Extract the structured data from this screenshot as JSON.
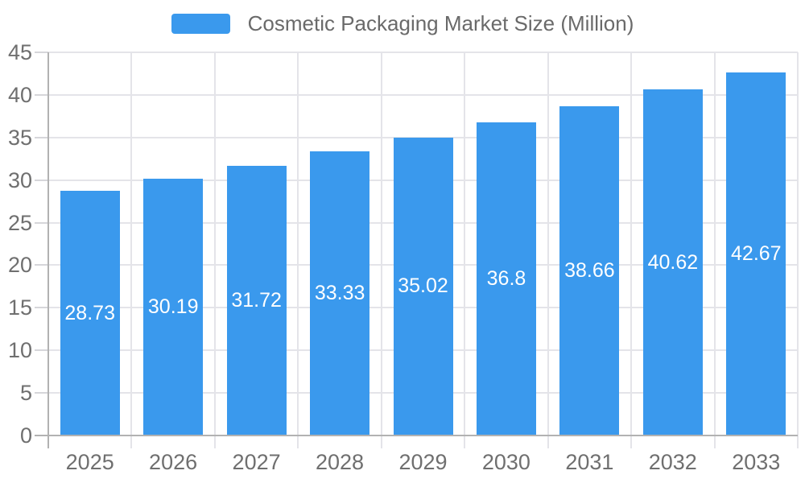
{
  "chart_data": {
    "type": "bar",
    "title": "Cosmetic Packaging Market Size (Million)",
    "categories": [
      "2025",
      "2026",
      "2027",
      "2028",
      "2029",
      "2030",
      "2031",
      "2032",
      "2033"
    ],
    "values": [
      28.73,
      30.19,
      31.72,
      33.33,
      35.02,
      36.8,
      38.66,
      40.62,
      42.67
    ],
    "series": [
      {
        "name": "Cosmetic Packaging Market Size (Million)",
        "values": [
          28.73,
          30.19,
          31.72,
          33.33,
          35.02,
          36.8,
          38.66,
          40.62,
          42.67
        ]
      }
    ],
    "xlabel": "",
    "ylabel": "",
    "ylim": [
      0,
      45
    ],
    "yticks": [
      0,
      5,
      10,
      15,
      20,
      25,
      30,
      35,
      40,
      45
    ],
    "grid": true,
    "legend_position": "top-center",
    "value_labels_position": "inside-center",
    "bar_color": "#3A99ED",
    "value_label_color": "#ffffff"
  },
  "legend": {
    "label": "Cosmetic Packaging Market Size (Million)",
    "swatch_color": "#3A99ED"
  },
  "colors": {
    "background": "#ffffff",
    "bar": "#3A99ED",
    "axis_line": "#b2b2b2",
    "tick": "#d6d6da",
    "gridline": "#e4e4e9",
    "axis_text": "#6f6f6f",
    "legend_text": "#6a6a6a",
    "value_text": "#ffffff"
  }
}
